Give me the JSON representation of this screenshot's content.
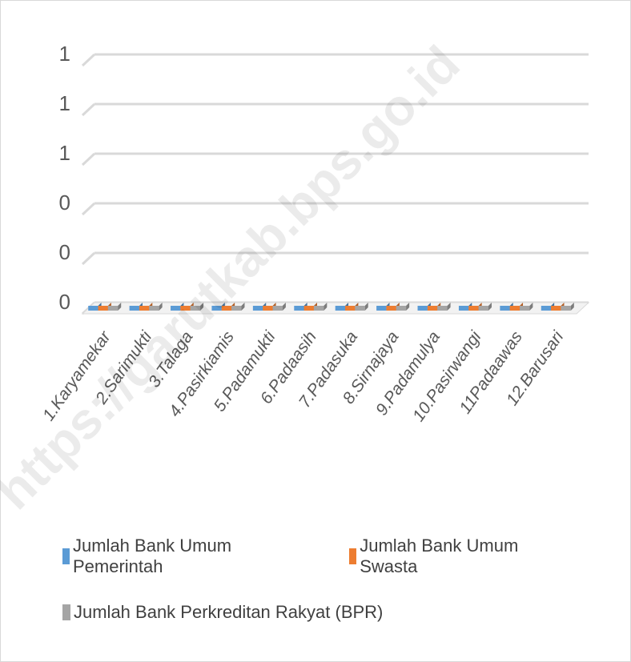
{
  "chart_data": {
    "type": "bar",
    "title": "",
    "xlabel": "",
    "ylabel": "",
    "categories": [
      "1.Karyamekar",
      "2.Sarimukti",
      "3.Talaga",
      "4.Pasirkiamis",
      "5.Padamukti",
      "6.Padaasih",
      "7.Padasuka",
      "8.Sirnajaya",
      "9.Padamulya",
      "10.Pasirwangi",
      "11Padaawas",
      "12.Barusari"
    ],
    "y_tick_labels": [
      "0",
      "0",
      "0",
      "1",
      "1",
      "1"
    ],
    "ylim": [
      0,
      1
    ],
    "grid": true,
    "legend_position": "bottom",
    "series": [
      {
        "name": "Jumlah Bank Umum Pemerintah",
        "color": "#5b9bd5",
        "values": [
          0,
          0,
          0,
          0,
          0,
          0,
          0,
          0,
          0,
          0,
          0,
          0
        ]
      },
      {
        "name": "Jumlah Bank Umum Swasta",
        "color": "#ed7d31",
        "values": [
          0,
          0,
          0,
          0,
          0,
          0,
          0,
          0,
          0,
          0,
          0,
          0
        ]
      },
      {
        "name": "Jumlah Bank Perkreditan Rakyat (BPR)",
        "color": "#a5a5a5",
        "values": [
          0,
          0,
          0,
          0,
          0,
          0,
          0,
          0,
          0,
          0,
          0,
          0
        ]
      }
    ]
  },
  "watermark": "https://garutkab.bps.go.id"
}
